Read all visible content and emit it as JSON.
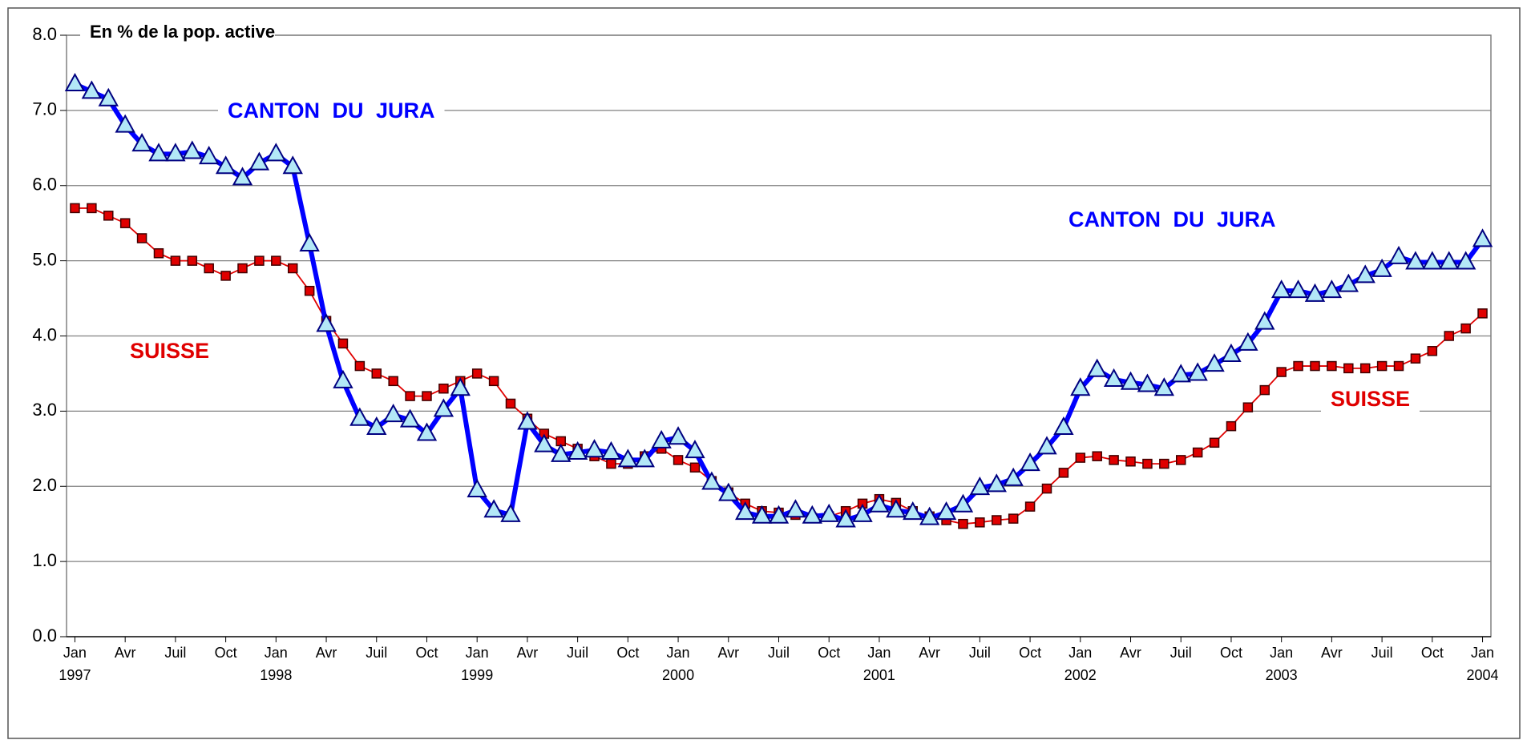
{
  "chart_data": {
    "type": "line",
    "title": "En % de la pop. active",
    "categories": [
      "Jan\n1997",
      null,
      null,
      "Avr",
      null,
      null,
      "Juil",
      null,
      null,
      "Oct",
      null,
      null,
      "Jan\n1998",
      null,
      null,
      "Avr",
      null,
      null,
      "Juil",
      null,
      null,
      "Oct",
      null,
      null,
      "Jan\n1999",
      null,
      null,
      "Avr",
      null,
      null,
      "Juil",
      null,
      null,
      "Oct",
      null,
      null,
      "Jan\n2000",
      null,
      null,
      "Avr",
      null,
      null,
      "Juil",
      null,
      null,
      "Oct",
      null,
      null,
      "Jan\n2001",
      null,
      null,
      "Avr",
      null,
      null,
      "Juil",
      null,
      null,
      "Oct",
      null,
      null,
      "Jan\n2002",
      null,
      null,
      "Avr",
      null,
      null,
      "Juil",
      null,
      null,
      "Oct",
      null,
      null,
      "Jan\n2003",
      null,
      null,
      "Avr",
      null,
      null,
      "Juil",
      null,
      null,
      "Oct",
      null,
      null,
      "Jan\n2004"
    ],
    "series": [
      {
        "name": "CANTON DU JURA",
        "color": "#0000ff",
        "marker_color": "#b3e8f7",
        "values": [
          7.35,
          7.25,
          7.15,
          6.8,
          6.55,
          6.42,
          6.42,
          6.45,
          6.38,
          6.25,
          6.1,
          6.3,
          6.42,
          6.25,
          5.22,
          4.15,
          3.4,
          2.9,
          2.78,
          2.95,
          2.88,
          2.7,
          3.02,
          3.3,
          1.95,
          1.68,
          1.62,
          2.85,
          2.55,
          2.42,
          2.45,
          2.48,
          2.45,
          2.35,
          2.35,
          2.6,
          2.65,
          2.47,
          2.05,
          1.9,
          1.65,
          1.6,
          1.6,
          1.68,
          1.6,
          1.62,
          1.55,
          1.62,
          1.75,
          1.68,
          1.65,
          1.58,
          1.65,
          1.75,
          1.98,
          2.02,
          2.1,
          2.3,
          2.52,
          2.78,
          3.3,
          3.55,
          3.42,
          3.38,
          3.35,
          3.3,
          3.48,
          3.5,
          3.62,
          3.75,
          3.9,
          4.18,
          4.6,
          4.6,
          4.55,
          4.6,
          4.68,
          4.8,
          4.88,
          5.05,
          4.98,
          4.98,
          4.98,
          4.98,
          5.28
        ]
      },
      {
        "name": "SUISSE",
        "color": "#e00000",
        "marker_color": "#e00000",
        "values": [
          5.7,
          5.7,
          5.6,
          5.5,
          5.3,
          5.1,
          5.0,
          5.0,
          4.9,
          4.8,
          4.9,
          5.0,
          5.0,
          4.9,
          4.6,
          4.2,
          3.9,
          3.6,
          3.5,
          3.4,
          3.2,
          3.2,
          3.3,
          3.4,
          3.5,
          3.4,
          3.1,
          2.9,
          2.7,
          2.6,
          2.5,
          2.4,
          2.3,
          2.3,
          2.4,
          2.5,
          2.35,
          2.25,
          2.07,
          1.92,
          1.77,
          1.67,
          1.65,
          1.62,
          1.58,
          1.6,
          1.67,
          1.77,
          1.83,
          1.78,
          1.67,
          1.6,
          1.55,
          1.5,
          1.52,
          1.55,
          1.57,
          1.73,
          1.97,
          2.18,
          2.38,
          2.4,
          2.35,
          2.33,
          2.3,
          2.3,
          2.35,
          2.45,
          2.58,
          2.8,
          3.05,
          3.28,
          3.52,
          3.6,
          3.6,
          3.6,
          3.57,
          3.57,
          3.6,
          3.6,
          3.7,
          3.8,
          4.0,
          4.1,
          4.3
        ]
      }
    ],
    "ylim": [
      0,
      8
    ],
    "yticks": [
      {
        "value": 0,
        "label": "0.0"
      },
      {
        "value": 1,
        "label": "1.0"
      },
      {
        "value": 2,
        "label": "2.0"
      },
      {
        "value": 3,
        "label": "3.0"
      },
      {
        "value": 4,
        "label": "4.0"
      },
      {
        "value": 5,
        "label": "5.0"
      },
      {
        "value": 6,
        "label": "6.0"
      },
      {
        "value": 7,
        "label": "7.0"
      },
      {
        "value": 8,
        "label": "8.0"
      }
    ],
    "grid": true
  }
}
